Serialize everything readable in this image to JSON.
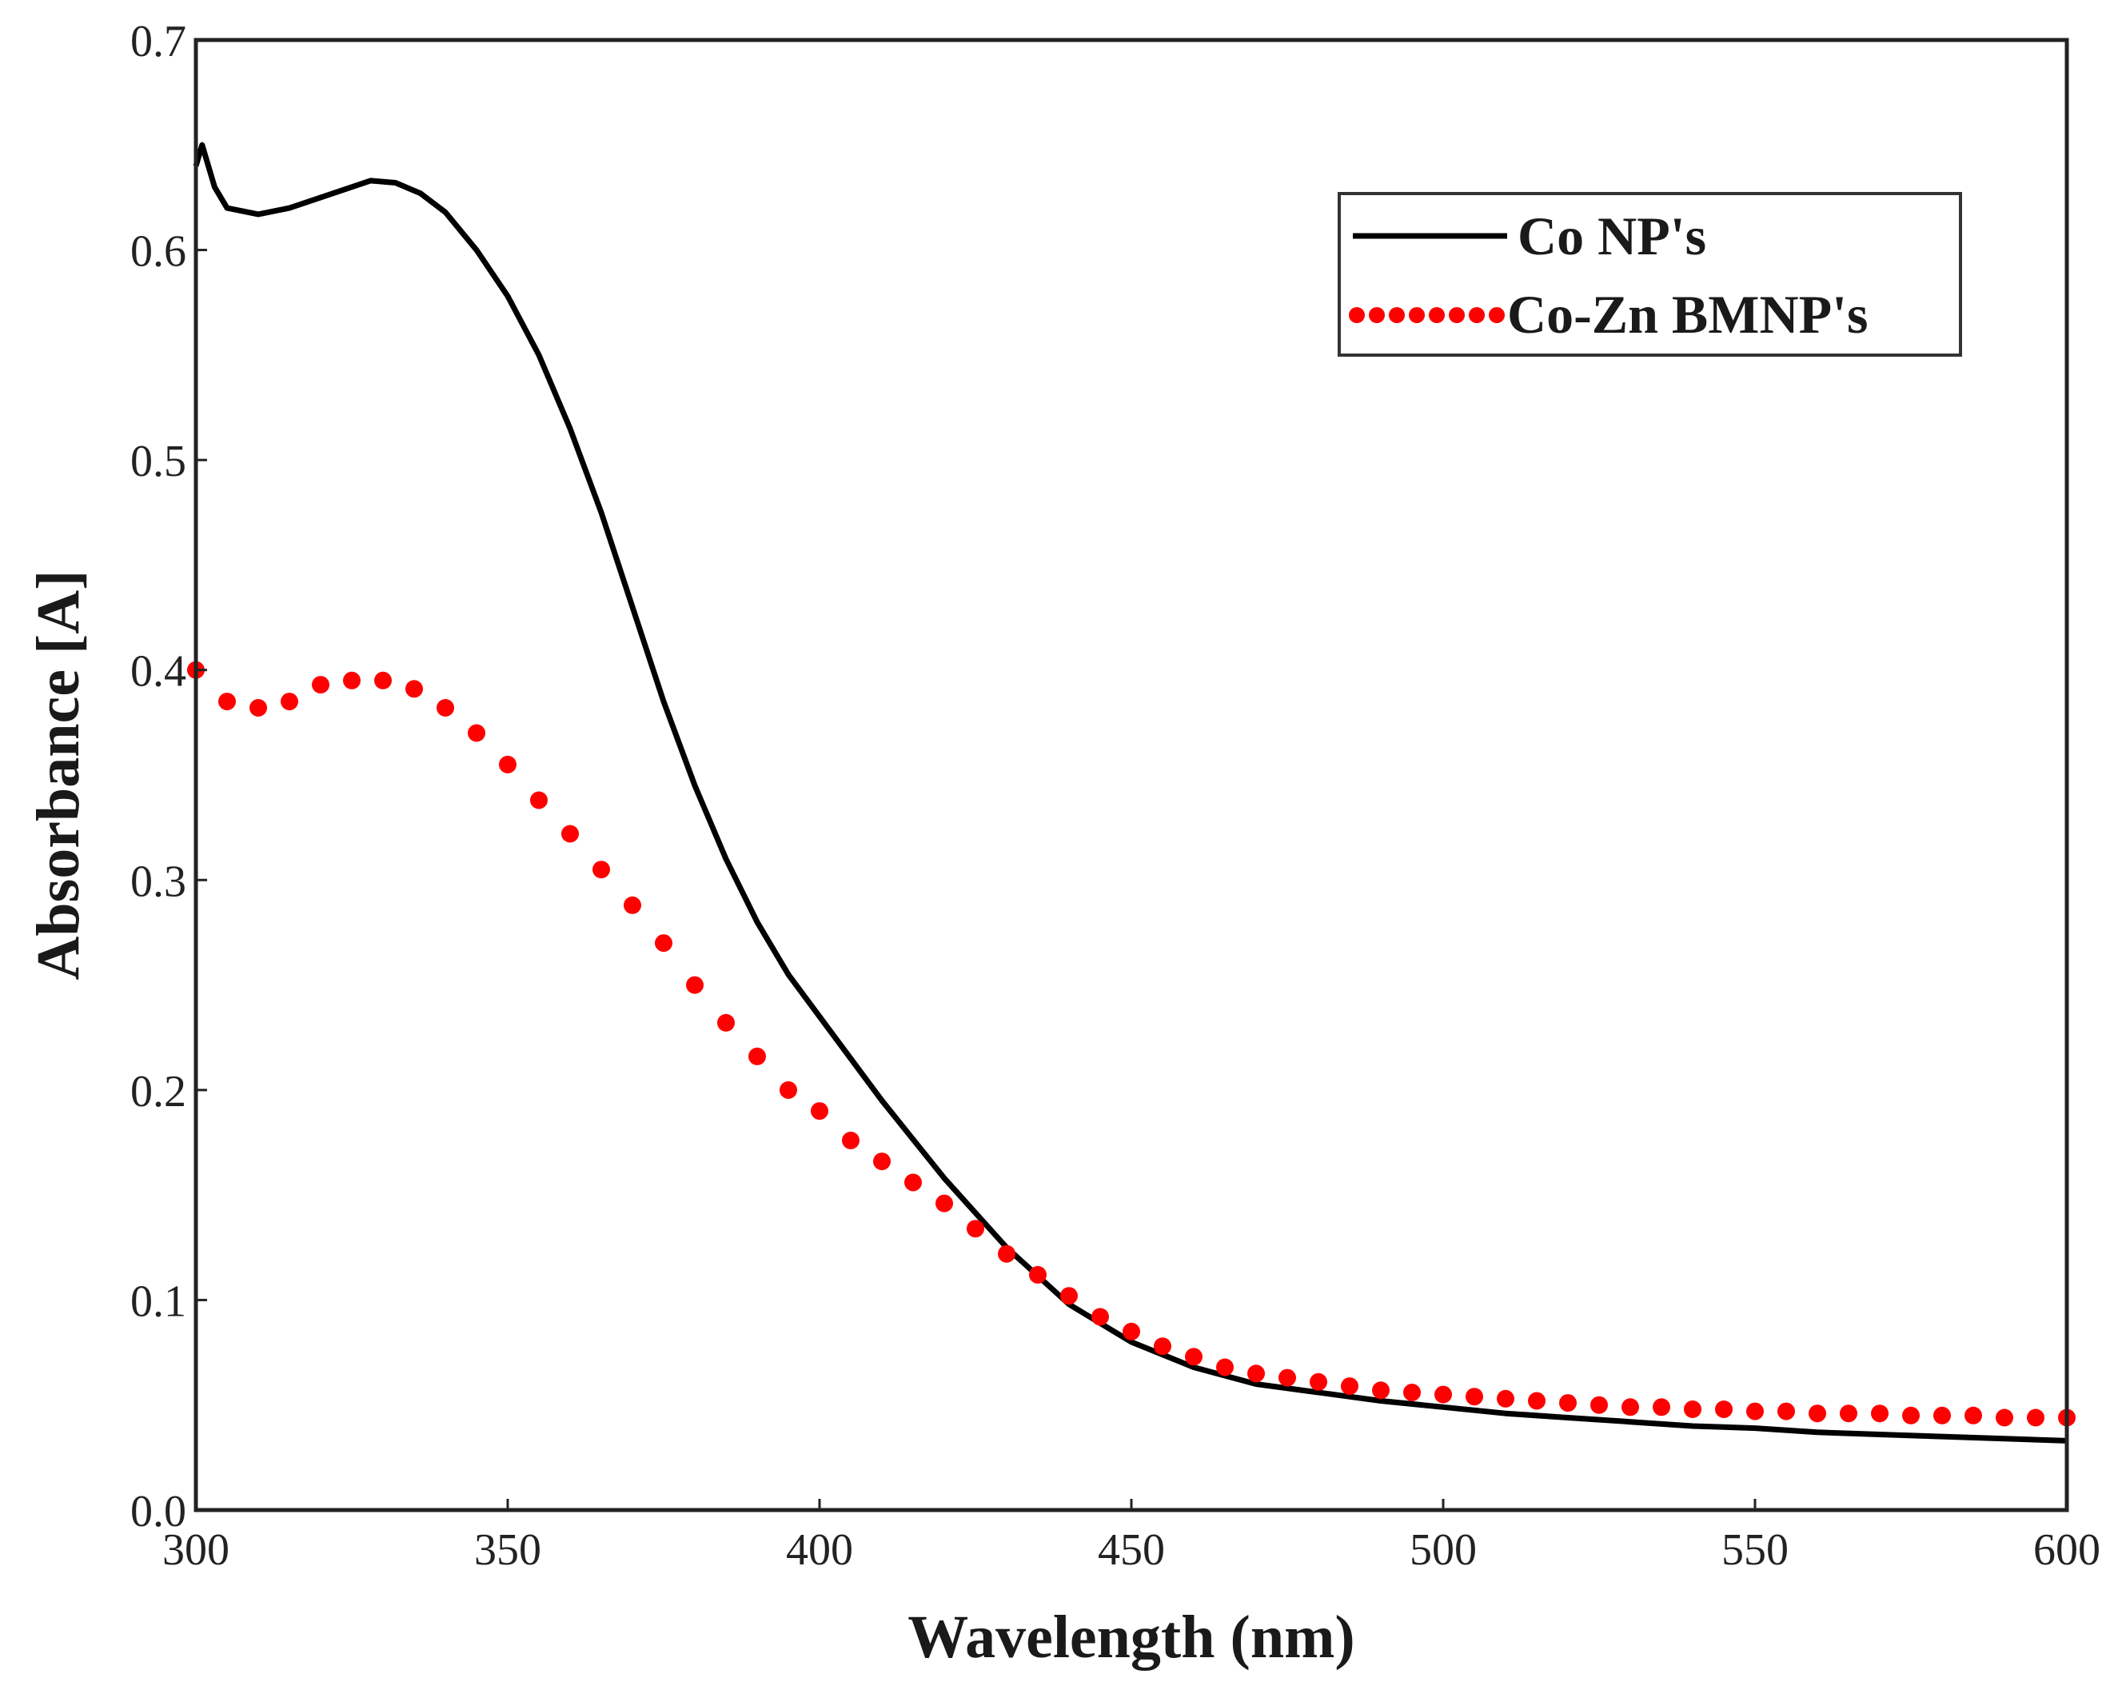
{
  "chart_data": {
    "type": "line",
    "title": "",
    "xlabel": "Wavelength (nm)",
    "ylabel": "Absorbance [A]",
    "xlim": [
      300,
      600
    ],
    "ylim": [
      0,
      0.7
    ],
    "xticks": [
      300,
      350,
      400,
      450,
      500,
      550,
      600
    ],
    "xtick_labels": [
      "300",
      "350",
      "400",
      "450",
      "500",
      "550",
      "600"
    ],
    "yticks": [
      0,
      0.1,
      0.2,
      0.3,
      0.4,
      0.5,
      0.6,
      0.7
    ],
    "ytick_labels": [
      "0.0",
      "0.1",
      "0.2",
      "0.3",
      "0.4",
      "0.5",
      "0.6",
      "0.7"
    ],
    "grid": false,
    "legend_position": "top-right",
    "series": [
      {
        "name": "Co NP's",
        "style": "solid",
        "color": "#000000",
        "x": [
          300,
          301,
          303,
          305,
          310,
          315,
          320,
          325,
          328,
          332,
          336,
          340,
          345,
          350,
          355,
          360,
          365,
          370,
          375,
          380,
          385,
          390,
          395,
          400,
          410,
          420,
          430,
          440,
          450,
          460,
          470,
          480,
          490,
          500,
          510,
          520,
          530,
          540,
          550,
          560,
          570,
          580,
          590,
          600
        ],
        "y": [
          0.64,
          0.65,
          0.63,
          0.62,
          0.617,
          0.62,
          0.625,
          0.63,
          0.633,
          0.632,
          0.627,
          0.618,
          0.6,
          0.578,
          0.55,
          0.515,
          0.475,
          0.43,
          0.385,
          0.345,
          0.31,
          0.28,
          0.255,
          0.235,
          0.195,
          0.158,
          0.125,
          0.098,
          0.08,
          0.068,
          0.06,
          0.056,
          0.052,
          0.049,
          0.046,
          0.044,
          0.042,
          0.04,
          0.039,
          0.037,
          0.036,
          0.035,
          0.034,
          0.033
        ]
      },
      {
        "name": "Co-Zn BMNP's",
        "style": "dotted",
        "color": "#ff0000",
        "x": [
          300,
          305,
          310,
          315,
          320,
          325,
          330,
          335,
          340,
          345,
          350,
          355,
          360,
          365,
          370,
          375,
          380,
          385,
          390,
          395,
          400,
          405,
          410,
          415,
          420,
          425,
          430,
          435,
          440,
          445,
          450,
          455,
          460,
          465,
          470,
          475,
          480,
          485,
          490,
          495,
          500,
          505,
          510,
          515,
          520,
          525,
          530,
          535,
          540,
          545,
          550,
          555,
          560,
          565,
          570,
          575,
          580,
          585,
          590,
          595,
          600
        ],
        "y": [
          0.4,
          0.385,
          0.382,
          0.385,
          0.393,
          0.395,
          0.395,
          0.391,
          0.382,
          0.37,
          0.355,
          0.338,
          0.322,
          0.305,
          0.288,
          0.27,
          0.25,
          0.232,
          0.216,
          0.2,
          0.19,
          0.176,
          0.166,
          0.156,
          0.146,
          0.134,
          0.122,
          0.112,
          0.102,
          0.092,
          0.085,
          0.078,
          0.073,
          0.068,
          0.065,
          0.063,
          0.061,
          0.059,
          0.057,
          0.056,
          0.055,
          0.054,
          0.053,
          0.052,
          0.051,
          0.05,
          0.049,
          0.049,
          0.048,
          0.048,
          0.047,
          0.047,
          0.046,
          0.046,
          0.046,
          0.045,
          0.045,
          0.045,
          0.044,
          0.044,
          0.044
        ]
      }
    ]
  }
}
